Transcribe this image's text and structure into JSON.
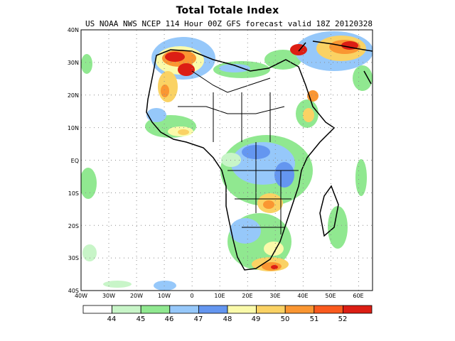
{
  "header": {
    "title": "Total Totale Index",
    "subtitle": "US NOAA NWS NCEP 114 Hour 00Z GFS forecast valid 18Z 20120328"
  },
  "map": {
    "lon_range": [
      -40,
      65
    ],
    "lat_range": [
      -40,
      40
    ],
    "lat_ticks": [
      "40N",
      "30N",
      "20N",
      "10N",
      "EQ",
      "10S",
      "20S",
      "30S",
      "40S"
    ],
    "lon_ticks": [
      "40W",
      "30W",
      "20W",
      "10W",
      "0",
      "10E",
      "20E",
      "30E",
      "40E",
      "50E",
      "60E"
    ],
    "grid": "dotted"
  },
  "colorbar": {
    "levels": [
      "44",
      "45",
      "46",
      "47",
      "48",
      "49",
      "50",
      "51",
      "52"
    ],
    "colors": [
      "#ffffff",
      "#c8f5c8",
      "#90e890",
      "#96c8fa",
      "#6496f0",
      "#fafaaa",
      "#fad264",
      "#fa9632",
      "#fa5a1e",
      "#dc1e14"
    ]
  }
}
